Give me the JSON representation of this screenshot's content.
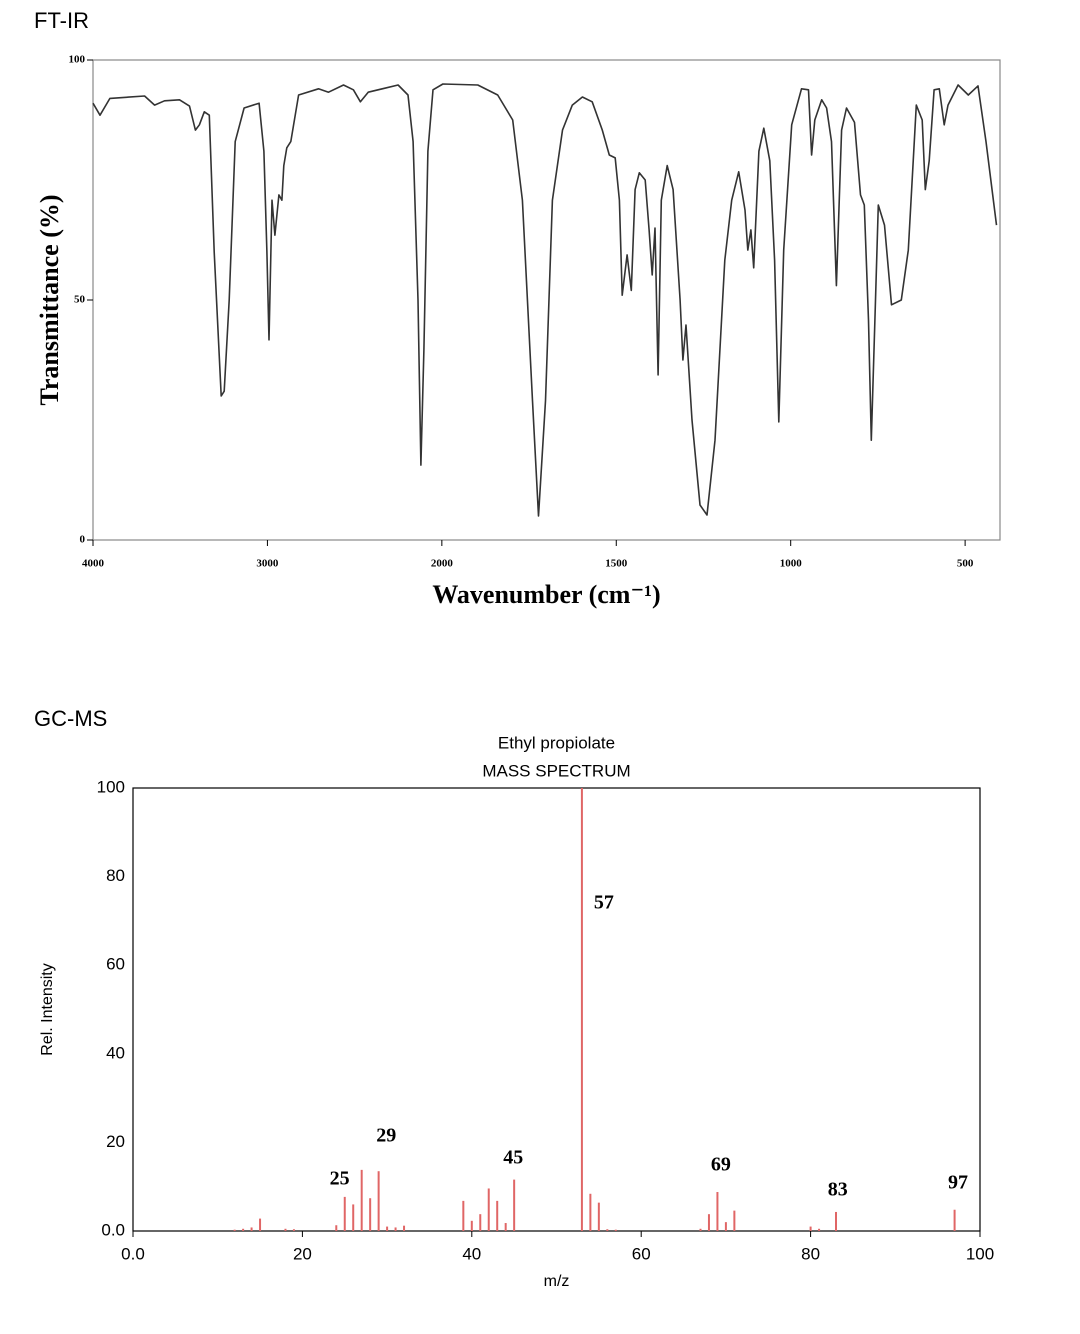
{
  "chart_data": [
    {
      "type": "line",
      "panel_label": "FT-IR",
      "xlabel": "Wavenumber (cm⁻¹)",
      "ylabel": "Transmittance (%)",
      "xlim": [
        4000,
        400
      ],
      "xsplit": 2000,
      "xticks": [
        4000,
        3000,
        2000,
        1500,
        1000,
        500
      ],
      "ylim": [
        0,
        100
      ],
      "yticks": [
        0,
        50,
        100
      ],
      "color": "#333333",
      "grid": false,
      "x": [
        4000,
        3960,
        3903,
        3704,
        3647,
        3590,
        3504,
        3447,
        3413,
        3390,
        3362,
        3333,
        3305,
        3265,
        3248,
        3219,
        3185,
        3134,
        3048,
        3020,
        3003,
        2991,
        2974,
        2957,
        2934,
        2917,
        2906,
        2889,
        2866,
        2821,
        2707,
        2650,
        2564,
        2507,
        2467,
        2422,
        2251,
        2194,
        2165,
        2137,
        2120,
        2103,
        2080,
        2051,
        1997,
        1897,
        1840,
        1797,
        1769,
        1740,
        1723,
        1703,
        1683,
        1654,
        1626,
        1597,
        1569,
        1540,
        1520,
        1503,
        1491,
        1483,
        1469,
        1457,
        1446,
        1434,
        1417,
        1406,
        1397,
        1389,
        1380,
        1371,
        1354,
        1337,
        1317,
        1309,
        1300,
        1283,
        1260,
        1240,
        1217,
        1189,
        1169,
        1149,
        1131,
        1123,
        1114,
        1106,
        1091,
        1077,
        1060,
        1046,
        1034,
        1020,
        997,
        969,
        949,
        940,
        931,
        911,
        897,
        883,
        869,
        854,
        840,
        817,
        800,
        789,
        777,
        769,
        757,
        749,
        731,
        711,
        683,
        663,
        640,
        623,
        614,
        603,
        589,
        574,
        560,
        549,
        520,
        491,
        463,
        440,
        410
      ],
      "values": [
        91,
        88.5,
        92,
        92.5,
        90.6,
        91.5,
        91.7,
        90.4,
        85.4,
        86.5,
        89.2,
        88.5,
        60,
        30,
        31,
        50,
        83,
        90,
        91,
        81,
        60,
        41.7,
        70.8,
        63.5,
        71.9,
        70.8,
        78,
        81.7,
        83,
        92.7,
        94,
        93.3,
        94.8,
        93.8,
        91.3,
        93.3,
        94.8,
        92.7,
        83,
        50,
        15.6,
        39.6,
        81,
        93.8,
        95,
        94.8,
        92.7,
        87.5,
        70.8,
        29,
        5,
        29,
        70.8,
        85.4,
        90.6,
        92.3,
        91.3,
        85.4,
        80.2,
        79.6,
        70.8,
        51,
        59.4,
        52,
        73,
        76.5,
        75,
        64.6,
        55.2,
        65,
        34.4,
        70.8,
        78,
        73,
        50,
        37.5,
        44.8,
        25,
        7.3,
        5.2,
        20.8,
        58.3,
        70.8,
        76.7,
        68.75,
        60.4,
        64.6,
        56.7,
        81,
        85.8,
        79,
        58.3,
        24.6,
        60.4,
        86.5,
        94,
        93.8,
        80.2,
        87.5,
        91.7,
        90,
        83,
        53,
        85.4,
        90,
        87,
        71.9,
        69.8,
        45.8,
        20.8,
        50,
        69.8,
        65.6,
        49,
        50,
        60.4,
        90.6,
        87.5,
        73,
        79,
        93.8,
        94,
        86.5,
        90.6,
        94.8,
        92.7,
        94.6,
        83,
        65.6
      ]
    },
    {
      "type": "stem",
      "panel_label": "GC-MS",
      "title": "Ethyl propiolate",
      "subtitle": "MASS SPECTRUM",
      "xlabel": "m/z",
      "ylabel": "Rel. Intensity",
      "xlim": [
        0,
        100
      ],
      "xticks": [
        {
          "value": 0,
          "label": "0.0"
        },
        20,
        40,
        60,
        80,
        100
      ],
      "ylim": [
        0,
        100
      ],
      "yticks": [
        {
          "value": 0,
          "label": "0.0"
        },
        20,
        40,
        60,
        80,
        100
      ],
      "color": "#e06666",
      "grid": false,
      "x": [
        12,
        13,
        14,
        15,
        18,
        19,
        24,
        25,
        26,
        27,
        28,
        29,
        30,
        31,
        32,
        39,
        40,
        41,
        42,
        43,
        44,
        45,
        53,
        54,
        55,
        56,
        57,
        67,
        68,
        69,
        70,
        71,
        80,
        81,
        83,
        97
      ],
      "values": [
        0.3,
        0.5,
        0.8,
        2.8,
        0.5,
        0.4,
        1.3,
        7.7,
        6,
        13.8,
        7.4,
        13.5,
        1,
        0.8,
        1.2,
        6.8,
        2.3,
        3.8,
        9.6,
        6.8,
        1.8,
        11.6,
        100,
        8.4,
        6.4,
        0.4,
        0.3,
        0.5,
        3.8,
        8.8,
        2,
        4.6,
        1,
        0.5,
        4.3,
        4.8
      ],
      "annotations": [
        {
          "text": "25",
          "x": 24.4,
          "y": 11.5
        },
        {
          "text": "29",
          "x": 29.9,
          "y": 21.2
        },
        {
          "text": "45",
          "x": 44.9,
          "y": 16.3
        },
        {
          "text": "57",
          "x": 55.6,
          "y": 73.8
        },
        {
          "text": "69",
          "x": 69.4,
          "y": 14.7
        },
        {
          "text": "83",
          "x": 83.2,
          "y": 9
        },
        {
          "text": "97",
          "x": 97.4,
          "y": 10.6
        }
      ]
    }
  ]
}
